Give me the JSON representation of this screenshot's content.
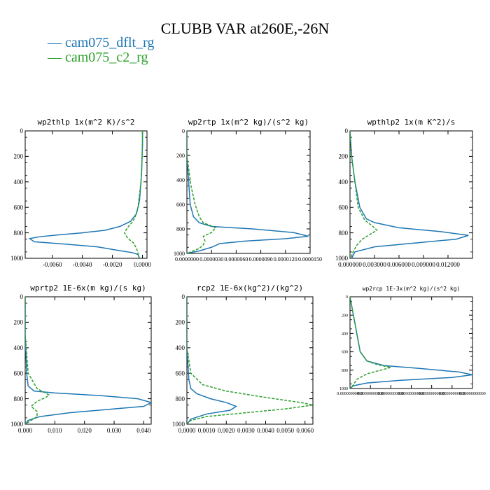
{
  "title": "CLUBB VAR at260E,-26N",
  "legend": [
    {
      "label": "cam075_dflt_rg",
      "color": "#1f77b4",
      "dash": "solid"
    },
    {
      "label": "cam075_c2_rg",
      "color": "#2ca02c",
      "dash": "dashed"
    }
  ],
  "chart_data": [
    {
      "type": "line",
      "title": "wp2thlp  1x(m^2 K)/s^2",
      "xlim": [
        -0.0078,
        0.0003
      ],
      "xticks": [
        -0.006,
        -0.004,
        -0.002,
        0.0
      ],
      "xtick_labels": [
        "-0.0060",
        "-0.0040",
        "-0.0020",
        "0.0000"
      ],
      "ylim": [
        1000,
        0
      ],
      "yticks": [
        0,
        200,
        400,
        600,
        800,
        1000
      ],
      "ytick_labels": [
        "0",
        "200",
        "400",
        "600",
        "800",
        "1000"
      ],
      "series": [
        {
          "name": "cam075_dflt_rg",
          "points": [
            [
              0,
              0
            ],
            [
              0,
              100
            ],
            [
              -5e-05,
              300
            ],
            [
              -0.0001,
              400
            ],
            [
              -0.0002,
              550
            ],
            [
              -0.0004,
              650
            ],
            [
              -0.0008,
              710
            ],
            [
              -0.0015,
              750
            ],
            [
              -0.0025,
              780
            ],
            [
              -0.004,
              800
            ],
            [
              -0.0055,
              815
            ],
            [
              -0.0068,
              830
            ],
            [
              -0.0075,
              845
            ],
            [
              -0.0072,
              870
            ],
            [
              -0.0055,
              885
            ],
            [
              -0.003,
              910
            ],
            [
              -0.0015,
              940
            ],
            [
              -0.0007,
              955
            ],
            [
              -0.0003,
              970
            ],
            [
              -0.0002,
              1000
            ]
          ]
        },
        {
          "name": "cam075_c2_rg",
          "points": [
            [
              0,
              0
            ],
            [
              0,
              100
            ],
            [
              -5e-05,
              300
            ],
            [
              -0.0001,
              400
            ],
            [
              -0.0002,
              500
            ],
            [
              -0.0003,
              600
            ],
            [
              -0.0005,
              680
            ],
            [
              -0.0007,
              720
            ],
            [
              -0.001,
              760
            ],
            [
              -0.0012,
              800
            ],
            [
              -0.001,
              840
            ],
            [
              -0.0006,
              880
            ],
            [
              -0.0004,
              920
            ],
            [
              -0.0003,
              960
            ],
            [
              -0.0002,
              1000
            ]
          ]
        }
      ]
    },
    {
      "type": "line",
      "title": "wp2rtp  1x(m^2 kg)/(s^2 kg)",
      "xlim": [
        0,
        1.5e-05
      ],
      "xticks": [
        0,
        3e-06,
        6e-06,
        9e-06,
        1.2e-05,
        1.5e-05
      ],
      "xtick_labels": [
        "0.0000000",
        "0.0000030",
        "0.0000060",
        "0.0000090",
        "0.0000120",
        "0.0000150"
      ],
      "ylim": [
        1000,
        0
      ],
      "yticks": [
        0,
        200,
        400,
        600,
        800,
        1000
      ],
      "ytick_labels": [
        "0",
        "200",
        "400",
        "600",
        "800",
        "1000"
      ],
      "series": [
        {
          "name": "cam075_dflt_rg",
          "points": [
            [
              0,
              0
            ],
            [
              0,
              200
            ],
            [
              2e-07,
              400
            ],
            [
              4e-07,
              600
            ],
            [
              8e-07,
              700
            ],
            [
              1.5e-06,
              750
            ],
            [
              3e-06,
              780
            ],
            [
              8e-06,
              800
            ],
            [
              1.3e-05,
              830
            ],
            [
              1.48e-05,
              860
            ],
            [
              1.2e-05,
              880
            ],
            [
              7e-06,
              900
            ],
            [
              4e-06,
              920
            ],
            [
              3e-06,
              950
            ],
            [
              1.5e-06,
              980
            ],
            [
              0,
              1000
            ]
          ]
        },
        {
          "name": "cam075_c2_rg",
          "points": [
            [
              0,
              0
            ],
            [
              0,
              200
            ],
            [
              5e-07,
              450
            ],
            [
              1e-06,
              600
            ],
            [
              1.5e-06,
              700
            ],
            [
              2e-06,
              750
            ],
            [
              3.5e-06,
              790
            ],
            [
              3e-06,
              830
            ],
            [
              2e-06,
              860
            ],
            [
              2.2e-06,
              900
            ],
            [
              2e-06,
              930
            ],
            [
              1.5e-06,
              960
            ],
            [
              0,
              1000
            ]
          ]
        }
      ]
    },
    {
      "type": "line",
      "title": "wpthlp2  1x(m K^2)/s",
      "xlim": [
        0,
        0.015
      ],
      "xticks": [
        0,
        0.003,
        0.006,
        0.009,
        0.012
      ],
      "xtick_labels": [
        "0.000000",
        "0.003000",
        "0.006000",
        "0.009000",
        "0.012000"
      ],
      "ylim": [
        1000,
        0
      ],
      "yticks": [
        0,
        200,
        400,
        600,
        800,
        1000
      ],
      "ytick_labels": [
        "0",
        "200",
        "400",
        "600",
        "800",
        "1000"
      ],
      "series": [
        {
          "name": "cam075_dflt_rg",
          "points": [
            [
              0,
              0
            ],
            [
              0.0002,
              200
            ],
            [
              0.0006,
              400
            ],
            [
              0.0012,
              600
            ],
            [
              0.002,
              690
            ],
            [
              0.003,
              720
            ],
            [
              0.006,
              760
            ],
            [
              0.011,
              790
            ],
            [
              0.0145,
              820
            ],
            [
              0.013,
              850
            ],
            [
              0.008,
              880
            ],
            [
              0.003,
              910
            ],
            [
              0.0006,
              950
            ],
            [
              0.0002,
              1000
            ]
          ]
        },
        {
          "name": "cam075_c2_rg",
          "points": [
            [
              0,
              0
            ],
            [
              0.0002,
              200
            ],
            [
              0.0006,
              400
            ],
            [
              0.001,
              600
            ],
            [
              0.0018,
              700
            ],
            [
              0.0028,
              750
            ],
            [
              0.0033,
              780
            ],
            [
              0.0025,
              810
            ],
            [
              0.0015,
              850
            ],
            [
              0.0008,
              900
            ],
            [
              0.0003,
              960
            ],
            [
              0.0001,
              1000
            ]
          ]
        }
      ]
    },
    {
      "type": "line",
      "title": "wprtp2  1E-6x(m kg)/(s kg)",
      "xlim": [
        0,
        0.0425
      ],
      "xticks": [
        0,
        0.01,
        0.02,
        0.03,
        0.04
      ],
      "xtick_labels": [
        "0.000",
        "0.010",
        "0.020",
        "0.030",
        "0.040"
      ],
      "ylim": [
        1000,
        0
      ],
      "yticks": [
        0,
        200,
        400,
        600,
        800,
        1000
      ],
      "ytick_labels": [
        "0",
        "200",
        "400",
        "600",
        "800",
        "1000"
      ],
      "series": [
        {
          "name": "cam075_dflt_rg",
          "points": [
            [
              0,
              0
            ],
            [
              0,
              300
            ],
            [
              0.0005,
              600
            ],
            [
              0.001,
              700
            ],
            [
              0.003,
              740
            ],
            [
              0.01,
              755
            ],
            [
              0.025,
              775
            ],
            [
              0.038,
              800
            ],
            [
              0.0425,
              830
            ],
            [
              0.04,
              860
            ],
            [
              0.03,
              880
            ],
            [
              0.015,
              910
            ],
            [
              0.005,
              940
            ],
            [
              0.001,
              970
            ],
            [
              0,
              1000
            ]
          ]
        },
        {
          "name": "cam075_c2_rg",
          "points": [
            [
              0,
              0
            ],
            [
              0,
              300
            ],
            [
              0.001,
              600
            ],
            [
              0.004,
              720
            ],
            [
              0.008,
              770
            ],
            [
              0.007,
              790
            ],
            [
              0.004,
              820
            ],
            [
              0.002,
              860
            ],
            [
              0.004,
              900
            ],
            [
              0.004,
              940
            ],
            [
              0.002,
              970
            ],
            [
              0,
              1000
            ]
          ]
        }
      ]
    },
    {
      "type": "line",
      "title": "rcp2  1E-6x(kg^2)/(kg^2)",
      "xlim": [
        0,
        0.0064
      ],
      "xticks": [
        0,
        0.001,
        0.002,
        0.003,
        0.004,
        0.005,
        0.006
      ],
      "xtick_labels": [
        "0.0000",
        "0.0010",
        "0.0020",
        "0.0030",
        "0.0040",
        "0.0050",
        "0.0060"
      ],
      "ylim": [
        1000,
        0
      ],
      "yticks": [
        0,
        200,
        400,
        600,
        800,
        1000
      ],
      "ytick_labels": [
        "0",
        "200",
        "400",
        "600",
        "800",
        "1000"
      ],
      "series": [
        {
          "name": "cam075_dflt_rg",
          "points": [
            [
              0,
              0
            ],
            [
              0,
              400
            ],
            [
              0.0001,
              650
            ],
            [
              0.0002,
              720
            ],
            [
              0.0005,
              760
            ],
            [
              0.0012,
              800
            ],
            [
              0.002,
              830
            ],
            [
              0.0025,
              860
            ],
            [
              0.0022,
              890
            ],
            [
              0.001,
              920
            ],
            [
              0.0002,
              960
            ],
            [
              0,
              1000
            ]
          ]
        },
        {
          "name": "cam075_c2_rg",
          "points": [
            [
              0,
              0
            ],
            [
              0,
              400
            ],
            [
              0.0002,
              600
            ],
            [
              0.0008,
              690
            ],
            [
              0.002,
              740
            ],
            [
              0.004,
              790
            ],
            [
              0.0058,
              830
            ],
            [
              0.0064,
              850
            ],
            [
              0.005,
              880
            ],
            [
              0.003,
              910
            ],
            [
              0.001,
              940
            ],
            [
              0.0002,
              970
            ],
            [
              0,
              1000
            ]
          ]
        }
      ]
    },
    {
      "type": "line",
      "title": "wp2rcp  1E-3x(m^2 kg)/(s^2 kg)",
      "xlim": [
        0,
        0.0036
      ],
      "xticks": [
        0,
        0.0006,
        0.0012,
        0.0018,
        0.0024,
        0.003,
        0.0036
      ],
      "xtick_labels": [
        "0.00000000000",
        "0.00000000000",
        "0.00000000000",
        "0.00000000000",
        "0.00000000000",
        "0.00000000000",
        "0.00000000000"
      ],
      "ylim": [
        1000,
        0
      ],
      "yticks": [
        0,
        200,
        400,
        600,
        800,
        1000
      ],
      "ytick_labels": [
        "0",
        "200",
        "400",
        "600",
        "800",
        "1000"
      ],
      "series": [
        {
          "name": "cam075_dflt_rg",
          "points": [
            [
              0,
              0
            ],
            [
              0.0001,
              200
            ],
            [
              0.0002,
              400
            ],
            [
              0.0003,
              600
            ],
            [
              0.0005,
              700
            ],
            [
              0.001,
              750
            ],
            [
              0.002,
              780
            ],
            [
              0.0032,
              820
            ],
            [
              0.0036,
              850
            ],
            [
              0.003,
              880
            ],
            [
              0.0015,
              910
            ],
            [
              0.0005,
              940
            ],
            [
              0.0001,
              970
            ],
            [
              0,
              1000
            ]
          ]
        },
        {
          "name": "cam075_c2_rg",
          "points": [
            [
              0,
              0
            ],
            [
              0.0001,
              200
            ],
            [
              0.0002,
              400
            ],
            [
              0.0003,
              600
            ],
            [
              0.0005,
              700
            ],
            [
              0.0008,
              740
            ],
            [
              0.0012,
              770
            ],
            [
              0.0009,
              800
            ],
            [
              0.0005,
              840
            ],
            [
              0.0002,
              900
            ],
            [
              0.0001,
              960
            ],
            [
              0,
              1000
            ]
          ]
        }
      ]
    }
  ]
}
